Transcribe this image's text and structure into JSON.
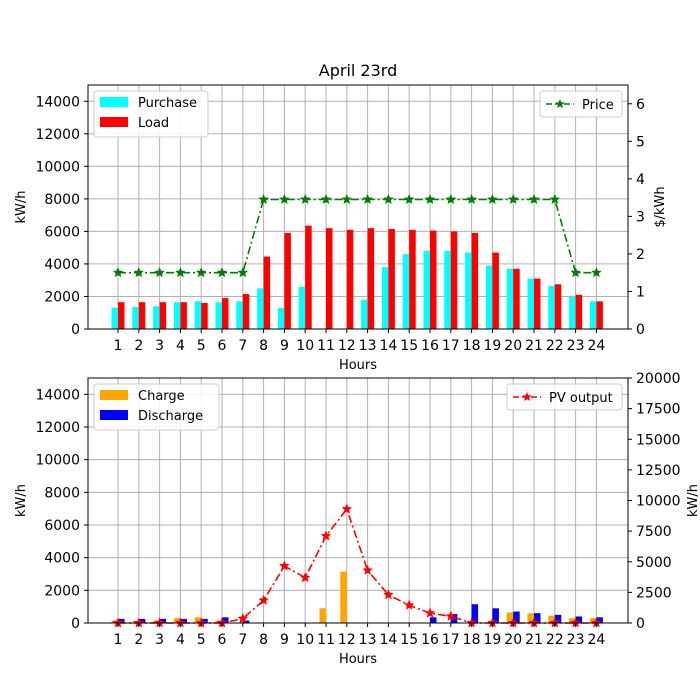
{
  "chart_data": [
    {
      "type": "bar",
      "title": "April 23rd",
      "xlabel": "Hours",
      "ylabel": "kW/h",
      "y2label": "$/kWh",
      "categories": [
        "1",
        "2",
        "3",
        "4",
        "5",
        "6",
        "7",
        "8",
        "9",
        "10",
        "11",
        "12",
        "13",
        "14",
        "15",
        "16",
        "17",
        "18",
        "19",
        "20",
        "21",
        "22",
        "23",
        "24"
      ],
      "ylim": [
        0,
        15000
      ],
      "y2lim": [
        0,
        6.5
      ],
      "yticks": [
        0,
        2000,
        4000,
        6000,
        8000,
        10000,
        12000,
        14000
      ],
      "y2ticks": [
        0,
        1,
        2,
        3,
        4,
        5,
        6
      ],
      "grid": true,
      "series": [
        {
          "name": "Purchase",
          "type": "bar",
          "axis": "left",
          "color": "#00ffff",
          "values": [
            1300,
            1350,
            1400,
            1650,
            1700,
            1650,
            1700,
            2500,
            1300,
            2600,
            0,
            0,
            1800,
            3800,
            4600,
            4800,
            4800,
            4700,
            3900,
            3700,
            3100,
            2650,
            2000,
            1700
          ]
        },
        {
          "name": "Load",
          "type": "bar",
          "axis": "left",
          "color": "#ff0000",
          "values": [
            1650,
            1650,
            1650,
            1650,
            1600,
            1900,
            2150,
            4450,
            5900,
            6350,
            6200,
            6100,
            6200,
            6150,
            6100,
            6050,
            6000,
            5900,
            4700,
            3700,
            3100,
            2750,
            2100,
            1700
          ]
        },
        {
          "name": "Price",
          "type": "line",
          "axis": "right",
          "color": "#008000",
          "values": [
            1.5,
            1.5,
            1.5,
            1.5,
            1.5,
            1.5,
            1.5,
            3.45,
            3.45,
            3.45,
            3.45,
            3.45,
            3.45,
            3.45,
            3.45,
            3.45,
            3.45,
            3.45,
            3.45,
            3.45,
            3.45,
            3.45,
            1.5,
            1.5
          ]
        }
      ],
      "legend_left": "top-left",
      "legend_right": "top-right"
    },
    {
      "type": "bar",
      "title": "",
      "xlabel": "Hours",
      "ylabel": "kW/h",
      "y2label": "kW/h",
      "categories": [
        "1",
        "2",
        "3",
        "4",
        "5",
        "6",
        "7",
        "8",
        "9",
        "10",
        "11",
        "12",
        "13",
        "14",
        "15",
        "16",
        "17",
        "18",
        "19",
        "20",
        "21",
        "22",
        "23",
        "24"
      ],
      "ylim": [
        0,
        15000
      ],
      "y2lim": [
        0,
        20000
      ],
      "yticks": [
        0,
        2000,
        4000,
        6000,
        8000,
        10000,
        12000,
        14000
      ],
      "y2ticks": [
        0,
        2500,
        5000,
        7500,
        10000,
        12500,
        15000,
        17500,
        20000
      ],
      "grid": true,
      "series": [
        {
          "name": "Charge",
          "type": "bar",
          "axis": "left",
          "color": "#ffa500",
          "values": [
            150,
            100,
            150,
            300,
            350,
            150,
            0,
            0,
            0,
            0,
            900,
            3150,
            0,
            0,
            0,
            0,
            0,
            0,
            0,
            650,
            600,
            450,
            300,
            300
          ]
        },
        {
          "name": "Discharge",
          "type": "bar",
          "axis": "left",
          "color": "#0000ff",
          "values": [
            250,
            250,
            250,
            250,
            250,
            350,
            150,
            0,
            0,
            0,
            0,
            0,
            0,
            0,
            0,
            350,
            550,
            1150,
            900,
            700,
            600,
            500,
            400,
            350
          ]
        },
        {
          "name": "PV output",
          "type": "line",
          "axis": "right",
          "color": "#ff0000",
          "values": [
            0,
            0,
            0,
            0,
            0,
            0,
            350,
            1850,
            4650,
            3700,
            7100,
            9300,
            4300,
            2300,
            1450,
            800,
            550,
            0,
            0,
            0,
            0,
            0,
            0,
            0
          ]
        }
      ],
      "legend_left": "top-left",
      "legend_right": "top-right"
    }
  ]
}
